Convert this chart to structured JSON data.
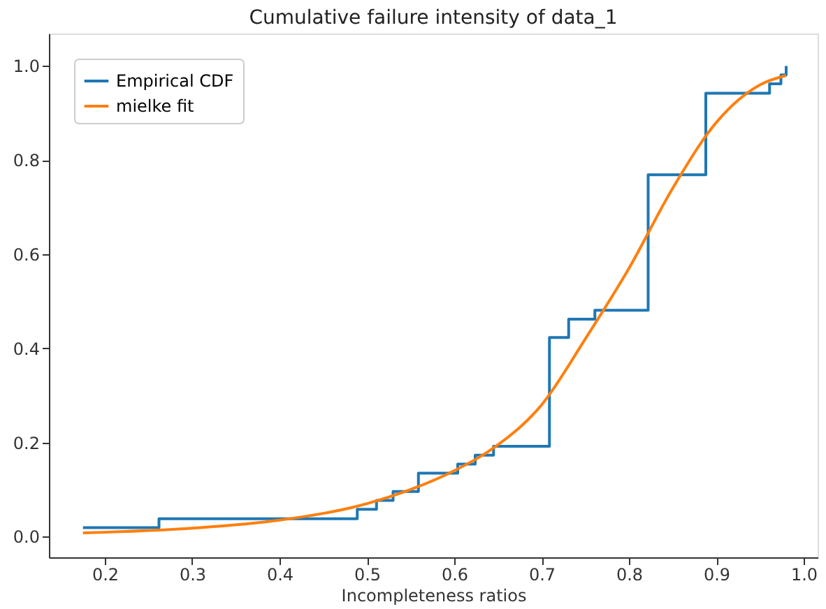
{
  "chart_data": {
    "type": "line",
    "title": "Cumulative failure intensity of data_1",
    "xlabel": "Incompleteness ratios",
    "series": [
      {
        "name": "Empirical CDF",
        "type": "step",
        "color": "#1f77b4",
        "x": [
          0.175,
          0.262,
          0.489,
          0.511,
          0.53,
          0.559,
          0.604,
          0.624,
          0.645,
          0.709,
          0.731,
          0.761,
          0.822,
          0.888,
          0.961,
          0.974,
          0.98
        ],
        "values": [
          0.019,
          0.038,
          0.058,
          0.077,
          0.096,
          0.135,
          0.154,
          0.173,
          0.192,
          0.423,
          0.462,
          0.481,
          0.769,
          0.942,
          0.962,
          0.981,
          1.0
        ]
      },
      {
        "name": "mielke fit",
        "color": "#ff7f0e",
        "x": [
          0.175,
          0.3,
          0.4,
          0.5,
          0.55,
          0.6,
          0.65,
          0.7,
          0.75,
          0.8,
          0.85,
          0.9,
          0.95,
          0.98
        ],
        "values": [
          0.008,
          0.018,
          0.035,
          0.07,
          0.1,
          0.14,
          0.195,
          0.28,
          0.42,
          0.57,
          0.74,
          0.88,
          0.96,
          0.98
        ]
      }
    ],
    "xlim": [
      0.136,
      1.016
    ],
    "ylim": [
      -0.044,
      1.069
    ],
    "xticks": [
      {
        "value": 0.2,
        "label": "0.2"
      },
      {
        "value": 0.3,
        "label": "0.3"
      },
      {
        "value": 0.4,
        "label": "0.4"
      },
      {
        "value": 0.5,
        "label": "0.5"
      },
      {
        "value": 0.6,
        "label": "0.6"
      },
      {
        "value": 0.7,
        "label": "0.7"
      },
      {
        "value": 0.8,
        "label": "0.8"
      },
      {
        "value": 0.9,
        "label": "0.9"
      },
      {
        "value": 1.0,
        "label": "1.0"
      }
    ],
    "yticks": [
      {
        "value": 0.0,
        "label": "0.0"
      },
      {
        "value": 0.2,
        "label": "0.2"
      },
      {
        "value": 0.4,
        "label": "0.4"
      },
      {
        "value": 0.6,
        "label": "0.6"
      },
      {
        "value": 0.8,
        "label": "0.8"
      },
      {
        "value": 1.0,
        "label": "1.0"
      }
    ],
    "legend": "top left",
    "grid": false
  }
}
